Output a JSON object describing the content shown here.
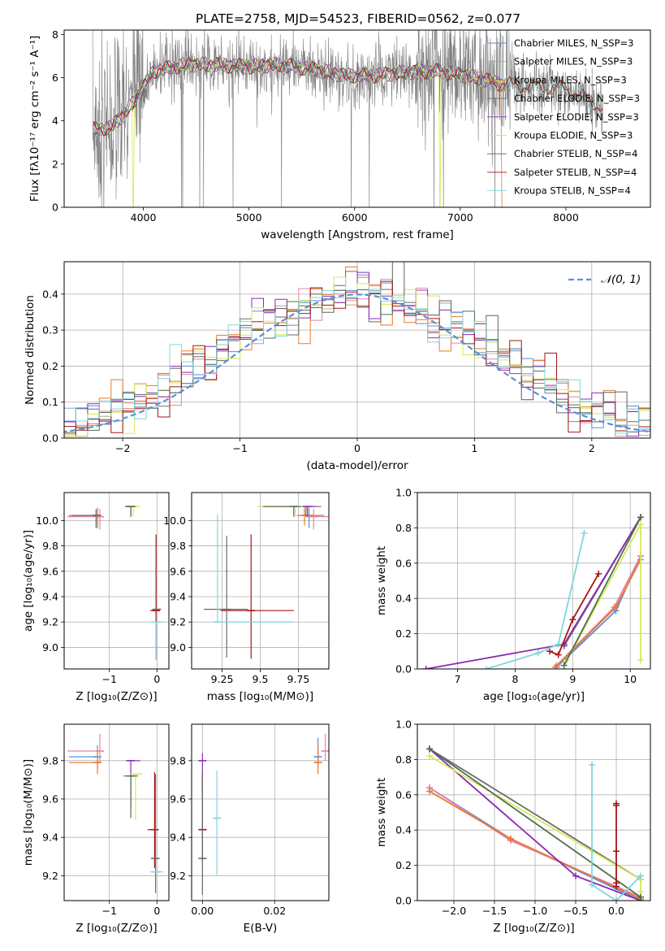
{
  "figure": {
    "title": "PLATE=2758, MJD=54523, FIBERID=0562, z=0.077"
  },
  "colors": {
    "Chabrier MILES": "#5b8fd6",
    "Salpeter MILES": "#e584a9",
    "Kroupa MILES": "#e87a2b",
    "Chabrier ELODIE": "#6a6a6a",
    "Salpeter ELODIE": "#8a2cb3",
    "Kroupa ELODIE": "#d5e85a",
    "Chabrier STELIB": "#4f6f4f",
    "Salpeter STELIB": "#a51515",
    "Kroupa STELIB": "#7fd6dc",
    "observed": "#808080",
    "normal": "#5b8fd6"
  },
  "chart_data": [
    {
      "type": "line",
      "panel": "spectrum",
      "xlabel": "wavelength [Angstrom, rest frame]",
      "ylabel": "Flux [fλ10⁻¹⁷ erg cm⁻² s⁻¹ A⁻¹]",
      "xlim": [
        3250,
        8800
      ],
      "ylim": [
        0,
        8.2
      ],
      "xticks": [
        4000,
        5000,
        6000,
        7000,
        8000
      ],
      "yticks": [
        0,
        2,
        4,
        6,
        8
      ],
      "legend_position": "top-right",
      "series": [
        {
          "name": "Chabrier MILES, N_SSP=3"
        },
        {
          "name": "Salpeter MILES, N_SSP=3"
        },
        {
          "name": "Kroupa MILES, N_SSP=3"
        },
        {
          "name": "Chabrier ELODIE, N_SSP=3"
        },
        {
          "name": "Salpeter ELODIE, N_SSP=3"
        },
        {
          "name": "Kroupa ELODIE, N_SSP=3"
        },
        {
          "name": "Chabrier STELIB, N_SSP=4"
        },
        {
          "name": "Salpeter STELIB, N_SSP=4"
        },
        {
          "name": "Kroupa STELIB, N_SSP=4"
        }
      ],
      "continuum_points": {
        "x": [
          3520,
          3700,
          3900,
          4100,
          4400,
          4700,
          5000,
          5300,
          5600,
          5900,
          6200,
          6500,
          6800,
          7100,
          7400,
          7700,
          8000,
          8200,
          8350
        ],
        "y": [
          3.6,
          3.7,
          4.8,
          6.3,
          6.6,
          6.6,
          6.5,
          6.6,
          6.4,
          6.1,
          6.1,
          6.25,
          6.3,
          6.05,
          5.7,
          5.6,
          5.5,
          5.0,
          4.6
        ]
      },
      "grid": false
    },
    {
      "type": "step",
      "panel": "residual_distribution",
      "xlabel": "(data-model)/error",
      "ylabel": "Normed distribution",
      "xlim": [
        -2.5,
        2.5
      ],
      "ylim": [
        0,
        0.49
      ],
      "xticks": [
        -2,
        -1,
        0,
        1,
        2
      ],
      "xtick_labels": [
        "−2",
        "−1",
        "0",
        "1",
        "2"
      ],
      "yticks": [
        0.0,
        0.1,
        0.2,
        0.3,
        0.4
      ],
      "legend": "𝒩(0, 1)",
      "legend_position": "top-right",
      "normal_curve": {
        "mean": 0,
        "sigma": 1
      },
      "grid": true
    },
    {
      "type": "errorbar",
      "panel": "Z_vs_age",
      "xlabel": "Z [log₁₀(Z/Z⊙)]",
      "ylabel": "age  [log₁₀(age/yr)]",
      "xlim": [
        -1.95,
        0.25
      ],
      "ylim": [
        8.83,
        10.22
      ],
      "xticks": [
        -1,
        0
      ],
      "xtick_labels": [
        "−1",
        "0"
      ],
      "yticks": [
        9.0,
        9.2,
        9.4,
        9.6,
        9.8,
        10.0
      ],
      "points": [
        {
          "series": "Chabrier MILES",
          "x": -1.25,
          "y": 10.04,
          "xerr": [
            0.6,
            0.05
          ],
          "yerr": [
            0.1,
            0.06
          ]
        },
        {
          "series": "Salpeter MILES",
          "x": -1.2,
          "y": 10.03,
          "xerr": [
            0.68,
            0.05
          ],
          "yerr": [
            0.1,
            0.06
          ]
        },
        {
          "series": "Kroupa MILES",
          "x": -1.25,
          "y": 10.04,
          "xerr": [
            0.6,
            0.05
          ],
          "yerr": [
            0.08,
            0.06
          ]
        },
        {
          "series": "Chabrier ELODIE",
          "x": -1.28,
          "y": 10.04,
          "xerr": [
            0.5,
            0.05
          ],
          "yerr": [
            0.1,
            0.05
          ]
        },
        {
          "series": "Salpeter ELODIE",
          "x": -0.55,
          "y": 10.11,
          "xerr": [
            0.12,
            0.0
          ],
          "yerr": [
            0.08,
            0.0
          ]
        },
        {
          "series": "Kroupa ELODIE",
          "x": -0.5,
          "y": 10.11,
          "xerr": [
            0.1,
            0.15
          ],
          "yerr": [
            0.08,
            0.0
          ]
        },
        {
          "series": "Chabrier STELIB",
          "x": -0.55,
          "y": 10.11,
          "xerr": [
            0.12,
            0.1
          ],
          "yerr": [
            0.08,
            0.0
          ]
        },
        {
          "series": "Salpeter STELIB",
          "x": -0.02,
          "y": 9.29,
          "xerr": [
            0.12,
            0.05
          ],
          "yerr": [
            0.38,
            0.6
          ]
        },
        {
          "series": "Kroupa STELIB",
          "x": -0.02,
          "y": 9.2,
          "xerr": [
            0.12,
            0.15
          ],
          "yerr": [
            0.3,
            0.0
          ]
        },
        {
          "series": "Chabrier ELODIE",
          "x": 0.0,
          "y": 9.3,
          "xerr": [
            0.1,
            0.05
          ],
          "yerr": [
            0.0,
            0.0
          ]
        }
      ],
      "grid": true
    },
    {
      "type": "errorbar",
      "panel": "mass_vs_age",
      "xlabel": "mass [log₁₀(M/M⊙)]",
      "ylabel": "",
      "xlim": [
        9.05,
        9.95
      ],
      "ylim": [
        8.83,
        10.22
      ],
      "xticks": [
        9.25,
        9.5,
        9.75
      ],
      "yticks": [
        9.0,
        9.2,
        9.4,
        9.6,
        9.8,
        10.0
      ],
      "points": [
        {
          "series": "Chabrier MILES",
          "x": 9.82,
          "y": 10.04,
          "xerr": [
            0.05,
            0.1
          ],
          "yerr": [
            0.1,
            0.06
          ]
        },
        {
          "series": "Salpeter MILES",
          "x": 9.85,
          "y": 10.03,
          "xerr": [
            0.05,
            0.1
          ],
          "yerr": [
            0.1,
            0.06
          ]
        },
        {
          "series": "Kroupa MILES",
          "x": 9.79,
          "y": 10.04,
          "xerr": [
            0.05,
            0.1
          ],
          "yerr": [
            0.08,
            0.06
          ]
        },
        {
          "series": "Chabrier ELODIE",
          "x": 9.8,
          "y": 10.11,
          "xerr": [
            0.2,
            0.1
          ],
          "yerr": [
            0.08,
            0.0
          ]
        },
        {
          "series": "Salpeter ELODIE",
          "x": 9.81,
          "y": 10.11,
          "xerr": [
            0.3,
            0.05
          ],
          "yerr": [
            0.08,
            0.0
          ]
        },
        {
          "series": "Kroupa ELODIE",
          "x": 9.73,
          "y": 10.11,
          "xerr": [
            0.25,
            0.05
          ],
          "yerr": [
            0.08,
            0.0
          ]
        },
        {
          "series": "Chabrier STELIB",
          "x": 9.72,
          "y": 10.11,
          "xerr": [
            0.2,
            0.05
          ],
          "yerr": [
            0.08,
            0.0
          ]
        },
        {
          "series": "Salpeter STELIB",
          "x": 9.44,
          "y": 9.29,
          "xerr": [
            0.2,
            0.28
          ],
          "yerr": [
            0.38,
            0.6
          ]
        },
        {
          "series": "Chabrier ELODIE",
          "x": 9.28,
          "y": 9.3,
          "xerr": [
            0.15,
            0.14
          ],
          "yerr": [
            0.38,
            0.58
          ]
        },
        {
          "series": "Kroupa STELIB",
          "x": 9.22,
          "y": 9.2,
          "xerr": [
            0.0,
            0.5
          ],
          "yerr": [
            0.0,
            0.85
          ]
        }
      ],
      "grid": true
    },
    {
      "type": "line",
      "panel": "age_vs_mass_weight",
      "xlabel": "age  [log₁₀(age/yr)]",
      "ylabel": "mass weight",
      "xlim": [
        6.3,
        10.35
      ],
      "ylim": [
        0,
        1.0
      ],
      "xticks": [
        7,
        8,
        9,
        10
      ],
      "yticks": [
        0.0,
        0.2,
        0.4,
        0.6,
        0.8,
        1.0
      ],
      "series": [
        {
          "ref": "Chabrier MILES",
          "x": [
            8.72,
            9.75,
            10.18
          ],
          "y": [
            0.01,
            0.33,
            0.64
          ]
        },
        {
          "ref": "Salpeter MILES",
          "x": [
            8.72,
            9.72,
            10.18
          ],
          "y": [
            0.02,
            0.35,
            0.64
          ]
        },
        {
          "ref": "Kroupa MILES",
          "x": [
            8.7,
            9.75,
            10.18
          ],
          "y": [
            0.01,
            0.35,
            0.62
          ]
        },
        {
          "ref": "Chabrier ELODIE",
          "x": [
            8.85,
            10.18
          ],
          "y": [
            0.13,
            0.86
          ]
        },
        {
          "ref": "Salpeter ELODIE",
          "x": [
            6.45,
            8.85,
            10.18
          ],
          "y": [
            0.0,
            0.14,
            0.86
          ]
        },
        {
          "ref": "Kroupa ELODIE",
          "x": [
            8.9,
            10.18,
            10.18
          ],
          "y": [
            0.05,
            0.82,
            0.05
          ]
        },
        {
          "ref": "Chabrier STELIB",
          "x": [
            8.85,
            10.18
          ],
          "y": [
            0.02,
            0.86
          ]
        },
        {
          "ref": "Salpeter STELIB",
          "x": [
            8.6,
            8.75,
            9.0,
            9.45
          ],
          "y": [
            0.1,
            0.08,
            0.28,
            0.54
          ]
        },
        {
          "ref": "Kroupa STELIB",
          "x": [
            7.5,
            8.4,
            8.75,
            9.2
          ],
          "y": [
            0.0,
            0.09,
            0.14,
            0.77
          ]
        }
      ],
      "grid": true
    },
    {
      "type": "errorbar",
      "panel": "Z_vs_mass",
      "xlabel": "Z [log₁₀(Z/Z⊙)]",
      "ylabel": "mass [log₁₀(M/M⊙)]",
      "xlim": [
        -1.95,
        0.25
      ],
      "ylim": [
        9.07,
        9.99
      ],
      "xticks": [
        -1,
        0
      ],
      "xtick_labels": [
        "−1",
        "0"
      ],
      "yticks": [
        9.2,
        9.4,
        9.6,
        9.8
      ],
      "points": [
        {
          "series": "Chabrier MILES",
          "x": -1.25,
          "y": 9.82,
          "xerr": [
            0.6,
            0.05
          ],
          "yerr": [
            0.06,
            0.06
          ]
        },
        {
          "series": "Salpeter MILES",
          "x": -1.2,
          "y": 9.85,
          "xerr": [
            0.68,
            0.05
          ],
          "yerr": [
            0.06,
            0.09
          ]
        },
        {
          "series": "Kroupa MILES",
          "x": -1.25,
          "y": 9.79,
          "xerr": [
            0.6,
            0.05
          ],
          "yerr": [
            0.06,
            0.06
          ]
        },
        {
          "series": "Salpeter ELODIE",
          "x": -0.55,
          "y": 9.8,
          "xerr": [
            0.1,
            0.2
          ],
          "yerr": [
            0.25,
            0.0
          ]
        },
        {
          "series": "Kroupa ELODIE",
          "x": -0.45,
          "y": 9.73,
          "xerr": [
            0.1,
            0.15
          ],
          "yerr": [
            0.24,
            0.0
          ]
        },
        {
          "series": "Chabrier STELIB",
          "x": -0.55,
          "y": 9.72,
          "xerr": [
            0.15,
            0.15
          ],
          "yerr": [
            0.22,
            0.0
          ]
        },
        {
          "series": "Salpeter STELIB",
          "x": -0.05,
          "y": 9.44,
          "xerr": [
            0.15,
            0.05
          ],
          "yerr": [
            0.2,
            0.3
          ]
        },
        {
          "series": "Chabrier ELODIE",
          "x": -0.03,
          "y": 9.29,
          "xerr": [
            0.1,
            0.05
          ],
          "yerr": [
            0.18,
            0.44
          ]
        },
        {
          "series": "Kroupa STELIB",
          "x": -0.02,
          "y": 9.22,
          "xerr": [
            0.12,
            0.15
          ],
          "yerr": [
            0.0,
            0.0
          ]
        }
      ],
      "grid": true
    },
    {
      "type": "errorbar",
      "panel": "EBV_vs_mass",
      "xlabel": "E(B-V)",
      "ylabel": "",
      "xlim": [
        -0.003,
        0.035
      ],
      "ylim": [
        9.07,
        9.99
      ],
      "xticks": [
        0.0,
        0.02
      ],
      "xtick_labels": [
        "0.00",
        "0.02"
      ],
      "yticks": [
        9.2,
        9.4,
        9.6,
        9.8
      ],
      "points": [
        {
          "series": "Chabrier MILES",
          "x": 0.032,
          "y": 9.82,
          "xerr": [
            0,
            0
          ],
          "yerr": [
            0.06,
            0.1
          ]
        },
        {
          "series": "Salpeter MILES",
          "x": 0.034,
          "y": 9.85,
          "xerr": [
            0,
            0
          ],
          "yerr": [
            0.05,
            0.09
          ]
        },
        {
          "series": "Kroupa MILES",
          "x": 0.032,
          "y": 9.79,
          "xerr": [
            0,
            0
          ],
          "yerr": [
            0.06,
            0.1
          ]
        },
        {
          "series": "Salpeter ELODIE",
          "x": 0.0,
          "y": 9.8,
          "xerr": [
            0,
            0
          ],
          "yerr": [
            0.2,
            0.04
          ]
        },
        {
          "series": "Salpeter STELIB",
          "x": 0.0,
          "y": 9.44,
          "xerr": [
            0,
            0
          ],
          "yerr": [
            0.17,
            0.3
          ]
        },
        {
          "series": "Chabrier ELODIE",
          "x": 0.0,
          "y": 9.29,
          "xerr": [
            0,
            0
          ],
          "yerr": [
            0.19,
            0.45
          ]
        },
        {
          "series": "Kroupa STELIB",
          "x": 0.004,
          "y": 9.5,
          "xerr": [
            0,
            0
          ],
          "yerr": [
            0.3,
            0.25
          ]
        }
      ],
      "grid": true
    },
    {
      "type": "line",
      "panel": "Z_vs_mass_weight",
      "xlabel": "Z [log₁₀(Z/Z⊙)]",
      "ylabel": "mass weight",
      "xlim": [
        -2.45,
        0.42
      ],
      "ylim": [
        0,
        1.0
      ],
      "xticks": [
        -2.0,
        -1.5,
        -1.0,
        -0.5,
        0.0
      ],
      "xtick_labels": [
        "−2.0",
        "−1.5",
        "−1.0",
        "−0.5",
        "0.0"
      ],
      "yticks": [
        0.0,
        0.2,
        0.4,
        0.6,
        0.8,
        1.0
      ],
      "series": [
        {
          "ref": "Chabrier MILES",
          "x": [
            -2.3,
            -1.3,
            0.3
          ],
          "y": [
            0.64,
            0.35,
            0.0
          ]
        },
        {
          "ref": "Salpeter MILES",
          "x": [
            -2.3,
            -1.3,
            0.3
          ],
          "y": [
            0.64,
            0.34,
            0.02
          ]
        },
        {
          "ref": "Kroupa MILES",
          "x": [
            -2.3,
            -1.3,
            0.3
          ],
          "y": [
            0.62,
            0.35,
            0.01
          ]
        },
        {
          "ref": "Chabrier ELODIE",
          "x": [
            -2.3,
            0.3
          ],
          "y": [
            0.86,
            0.12
          ]
        },
        {
          "ref": "Salpeter ELODIE",
          "x": [
            -2.3,
            -0.5,
            0.3
          ],
          "y": [
            0.86,
            0.14,
            0.0
          ]
        },
        {
          "ref": "Kroupa ELODIE",
          "x": [
            -2.3,
            0.3,
            0.3
          ],
          "y": [
            0.82,
            0.12,
            0.05
          ]
        },
        {
          "ref": "Chabrier STELIB",
          "x": [
            -2.3,
            0.3
          ],
          "y": [
            0.86,
            0.02
          ]
        },
        {
          "ref": "Salpeter STELIB",
          "x": [
            0.0,
            0.0,
            0.0,
            0.0,
            0.0
          ],
          "y": [
            0.55,
            0.28,
            0.1,
            0.08,
            0.54
          ]
        },
        {
          "ref": "Kroupa STELIB",
          "x": [
            -0.3,
            -0.3,
            0.0,
            0.3
          ],
          "y": [
            0.77,
            0.09,
            0.0,
            0.14
          ]
        }
      ],
      "grid": true
    }
  ]
}
